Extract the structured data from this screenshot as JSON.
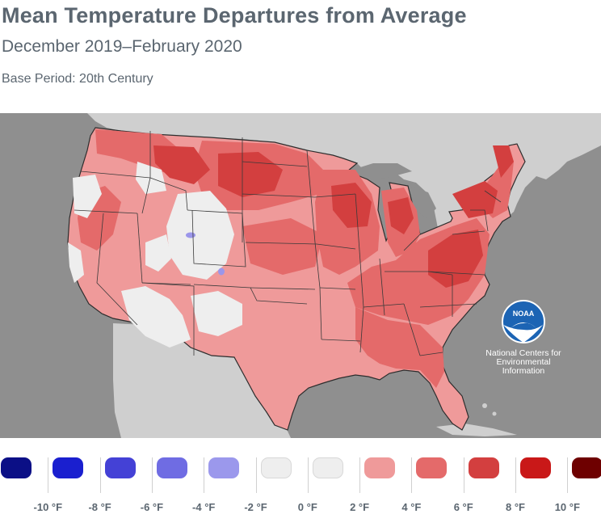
{
  "header": {
    "title": "Mean Temperature Departures from Average",
    "subtitle": "December 2019–February 2020",
    "base_period": "Base Period: 20th Century"
  },
  "map": {
    "region": "Contiguous United States",
    "colors": {
      "ocean": "#8f8f8f",
      "land_outside": "#cfcfcf",
      "near_zero": "#eeeeee",
      "plus_2_4": "#ef9a9a",
      "plus_4_6": "#e46a6a",
      "plus_6_8": "#d33f3f",
      "minus_2_4": "#9b96ea",
      "border": "#3a3a3a"
    },
    "logo": {
      "name": "noaa-logo",
      "text": "NOAA",
      "caption_lines": [
        "National Centers for",
        "Environmental",
        "Information"
      ]
    }
  },
  "legend": {
    "swatches": [
      {
        "color": "#0b0f86"
      },
      {
        "color": "#1a1fcf"
      },
      {
        "color": "#4441d6"
      },
      {
        "color": "#6f6ce3"
      },
      {
        "color": "#9b98ec"
      },
      {
        "color": "#eeeeee"
      },
      {
        "color": "#eeeeee"
      },
      {
        "color": "#ef9a9a"
      },
      {
        "color": "#e46a6a"
      },
      {
        "color": "#d33f3f"
      },
      {
        "color": "#c91818"
      },
      {
        "color": "#6e0000"
      }
    ],
    "labels": [
      "-10 °F",
      "-8 °F",
      "-6 °F",
      "-4 °F",
      "-2 °F",
      "0 °F",
      "2 °F",
      "4 °F",
      "6 °F",
      "8 °F",
      "10 °F"
    ]
  }
}
